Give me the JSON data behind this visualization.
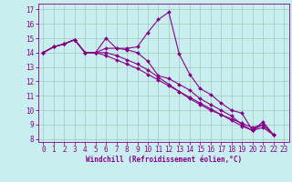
{
  "xlabel": "Windchill (Refroidissement éolien,°C)",
  "bg_color": "#c8eef0",
  "grid_color": "#a0c8b8",
  "line_color": "#880088",
  "spine_color": "#880088",
  "xlim": [
    -0.5,
    23.5
  ],
  "ylim": [
    7.8,
    17.4
  ],
  "yticks": [
    8,
    9,
    10,
    11,
    12,
    13,
    14,
    15,
    16,
    17
  ],
  "xticks": [
    0,
    1,
    2,
    3,
    4,
    5,
    6,
    7,
    8,
    9,
    10,
    11,
    12,
    13,
    14,
    15,
    16,
    17,
    18,
    19,
    20,
    21,
    22,
    23
  ],
  "series": [
    [
      14.0,
      14.4,
      14.6,
      14.9,
      14.0,
      14.0,
      15.0,
      14.3,
      14.3,
      14.4,
      15.4,
      16.3,
      16.8,
      13.9,
      12.5,
      11.5,
      11.1,
      10.5,
      10.0,
      9.8,
      8.6,
      9.2,
      8.3
    ],
    [
      14.0,
      14.4,
      14.6,
      14.9,
      14.0,
      14.0,
      14.3,
      14.3,
      14.2,
      14.0,
      13.4,
      12.4,
      12.2,
      11.8,
      11.4,
      10.8,
      10.4,
      10.0,
      9.6,
      9.0,
      8.6,
      9.0,
      8.3
    ],
    [
      14.0,
      14.4,
      14.6,
      14.9,
      14.0,
      14.0,
      14.0,
      13.8,
      13.5,
      13.2,
      12.8,
      12.3,
      11.8,
      11.3,
      10.8,
      10.4,
      10.0,
      9.7,
      9.4,
      9.1,
      8.8,
      9.0,
      8.3
    ],
    [
      14.0,
      14.4,
      14.6,
      14.9,
      14.0,
      14.0,
      13.8,
      13.5,
      13.2,
      12.9,
      12.5,
      12.1,
      11.7,
      11.3,
      10.9,
      10.5,
      10.1,
      9.7,
      9.3,
      8.9,
      8.6,
      8.8,
      8.3
    ]
  ],
  "tick_fontsize": 5.5,
  "xlabel_fontsize": 5.5
}
